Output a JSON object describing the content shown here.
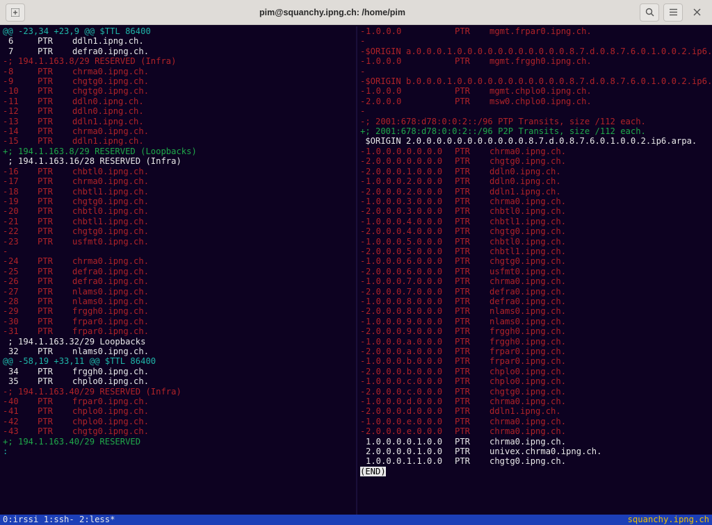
{
  "titlebar": {
    "title": "pim@squanchy.ipng.ch: /home/pim",
    "new_tab_icon": "+",
    "search_icon": "🔍",
    "menu_icon": "≡",
    "close_icon": "×"
  },
  "statusbar": {
    "left": "0:irssi  1:ssh- 2:less*",
    "right": "squanchy.ipng.ch "
  },
  "colors": {
    "bg": "#0d0221",
    "fg": "#e8e8e8",
    "hunk": "#1fb5a8",
    "add": "#1fa84a",
    "del": "#b02328",
    "statusbar_bg": "#1c3fb7",
    "host": "#f0c000"
  },
  "left_pane": [
    {
      "cls": "hunk",
      "c": [
        "@@ -23,34 +23,9 @@ $TTL 86400"
      ]
    },
    {
      "cls": "cmt",
      "c": [
        " ",
        "6",
        "PTR",
        "ddln1.ipng.ch."
      ]
    },
    {
      "cls": "cmt",
      "c": [
        " ",
        "7",
        "PTR",
        "defra0.ipng.ch."
      ]
    },
    {
      "cls": "cmt",
      "c": [
        ""
      ]
    },
    {
      "cls": "delc",
      "c": [
        "-; 194.1.163.8/29 RESERVED (Infra)"
      ]
    },
    {
      "cls": "delc",
      "c": [
        "-",
        "8",
        "PTR",
        "chrma0.ipng.ch."
      ]
    },
    {
      "cls": "delc",
      "c": [
        "-",
        "9",
        "PTR",
        "chgtg0.ipng.ch."
      ]
    },
    {
      "cls": "delc",
      "c": [
        "-",
        "10",
        "PTR",
        "chgtg0.ipng.ch."
      ]
    },
    {
      "cls": "delc",
      "c": [
        "-",
        "11",
        "PTR",
        "ddln0.ipng.ch."
      ]
    },
    {
      "cls": "delc",
      "c": [
        "-",
        "12",
        "PTR",
        "ddln0.ipng.ch."
      ]
    },
    {
      "cls": "delc",
      "c": [
        "-",
        "13",
        "PTR",
        "ddln1.ipng.ch."
      ]
    },
    {
      "cls": "delc",
      "c": [
        "-",
        "14",
        "PTR",
        "chrma0.ipng.ch."
      ]
    },
    {
      "cls": "delc",
      "c": [
        "-",
        "15",
        "PTR",
        "ddln1.ipng.ch."
      ]
    },
    {
      "cls": "addc",
      "c": [
        "+; 194.1.163.8/29 RESERVED (Loopbacks)"
      ]
    },
    {
      "cls": "cmt",
      "c": [
        ""
      ]
    },
    {
      "cls": "cmt",
      "c": [
        " ; 194.1.163.16/28 RESERVED (Infra)"
      ]
    },
    {
      "cls": "delc",
      "c": [
        "-",
        "16",
        "PTR",
        "chbtl0.ipng.ch."
      ]
    },
    {
      "cls": "delc",
      "c": [
        "-",
        "17",
        "PTR",
        "chrma0.ipng.ch."
      ]
    },
    {
      "cls": "delc",
      "c": [
        "-",
        "18",
        "PTR",
        "chbtl1.ipng.ch."
      ]
    },
    {
      "cls": "delc",
      "c": [
        "-",
        "19",
        "PTR",
        "chgtg0.ipng.ch."
      ]
    },
    {
      "cls": "delc",
      "c": [
        "-",
        "20",
        "PTR",
        "chbtl0.ipng.ch."
      ]
    },
    {
      "cls": "delc",
      "c": [
        "-",
        "21",
        "PTR",
        "chbtl1.ipng.ch."
      ]
    },
    {
      "cls": "delc",
      "c": [
        "-",
        "22",
        "PTR",
        "chgtg0.ipng.ch."
      ]
    },
    {
      "cls": "delc",
      "c": [
        "-",
        "23",
        "PTR",
        "usfmt0.ipng.ch."
      ]
    },
    {
      "cls": "delc",
      "c": [
        "-"
      ]
    },
    {
      "cls": "delc",
      "c": [
        "-",
        "24",
        "PTR",
        "chrma0.ipng.ch."
      ]
    },
    {
      "cls": "delc",
      "c": [
        "-",
        "25",
        "PTR",
        "defra0.ipng.ch."
      ]
    },
    {
      "cls": "delc",
      "c": [
        "-",
        "26",
        "PTR",
        "defra0.ipng.ch."
      ]
    },
    {
      "cls": "delc",
      "c": [
        "-",
        "27",
        "PTR",
        "nlams0.ipng.ch."
      ]
    },
    {
      "cls": "delc",
      "c": [
        "-",
        "28",
        "PTR",
        "nlams0.ipng.ch."
      ]
    },
    {
      "cls": "delc",
      "c": [
        "-",
        "29",
        "PTR",
        "frggh0.ipng.ch."
      ]
    },
    {
      "cls": "delc",
      "c": [
        "-",
        "30",
        "PTR",
        "frpar0.ipng.ch."
      ]
    },
    {
      "cls": "delc",
      "c": [
        "-",
        "31",
        "PTR",
        "frpar0.ipng.ch."
      ]
    },
    {
      "cls": "cmt",
      "c": [
        ""
      ]
    },
    {
      "cls": "cmt",
      "c": [
        " ; 194.1.163.32/29 Loopbacks"
      ]
    },
    {
      "cls": "cmt",
      "c": [
        " ",
        "32",
        "PTR",
        "nlams0.ipng.ch."
      ]
    },
    {
      "cls": "hunk",
      "c": [
        "@@ -58,19 +33,11 @@ $TTL 86400"
      ]
    },
    {
      "cls": "cmt",
      "c": [
        " ",
        "34",
        "PTR",
        "frggh0.ipng.ch."
      ]
    },
    {
      "cls": "cmt",
      "c": [
        " ",
        "35",
        "PTR",
        "chplo0.ipng.ch."
      ]
    },
    {
      "cls": "cmt",
      "c": [
        ""
      ]
    },
    {
      "cls": "delc",
      "c": [
        "-; 194.1.163.40/29 RESERVED (Infra)"
      ]
    },
    {
      "cls": "delc",
      "c": [
        "-",
        "40",
        "PTR",
        "frpar0.ipng.ch."
      ]
    },
    {
      "cls": "delc",
      "c": [
        "-",
        "41",
        "PTR",
        "chplo0.ipng.ch."
      ]
    },
    {
      "cls": "delc",
      "c": [
        "-",
        "42",
        "PTR",
        "chplo0.ipng.ch."
      ]
    },
    {
      "cls": "delc",
      "c": [
        "-",
        "43",
        "PTR",
        "chgtg0.ipng.ch."
      ]
    },
    {
      "cls": "addc",
      "c": [
        "+; 194.1.163.40/29 RESERVED"
      ]
    },
    {
      "cls": "hunk",
      "c": [
        ":"
      ]
    }
  ],
  "right_pane": [
    {
      "cls": "delc",
      "c": [
        "-",
        "1.0.0.0",
        "PTR",
        "mgmt.frpar0.ipng.ch."
      ]
    },
    {
      "cls": "delc",
      "c": [
        "-"
      ]
    },
    {
      "cls": "delc",
      "c": [
        "-$ORIGIN a.0.0.0.1.0.0.0.0.0.0.0.0.0.0.0.8.7.d.0.8.7.6.0.1.0.0.2.ip6.arpa."
      ]
    },
    {
      "cls": "delc",
      "c": [
        "-",
        "1.0.0.0",
        "PTR",
        "mgmt.frggh0.ipng.ch."
      ]
    },
    {
      "cls": "delc",
      "c": [
        "-"
      ]
    },
    {
      "cls": "delc",
      "c": [
        "-$ORIGIN b.0.0.0.1.0.0.0.0.0.0.0.0.0.0.0.8.7.d.0.8.7.6.0.1.0.0.2.ip6.arpa."
      ]
    },
    {
      "cls": "delc",
      "c": [
        "-",
        "1.0.0.0",
        "PTR",
        "mgmt.chplo0.ipng.ch."
      ]
    },
    {
      "cls": "delc",
      "c": [
        "-",
        "2.0.0.0",
        "PTR",
        "msw0.chplo0.ipng.ch."
      ]
    },
    {
      "cls": "delc",
      "c": [
        "-"
      ]
    },
    {
      "cls": "delc",
      "c": [
        "-; 2001:678:d78:0:0:2::/96 PTP Transits, size /112 each."
      ]
    },
    {
      "cls": "addc",
      "c": [
        "+; 2001:678:d78:0:0:2::/96 P2P Transits, size /112 each."
      ]
    },
    {
      "cls": "cmt",
      "c": [
        " $ORIGIN 2.0.0.0.0.0.0.0.0.0.0.0.8.7.d.0.8.7.6.0.1.0.0.2.ip6.arpa."
      ]
    },
    {
      "cls": "delc",
      "c": [
        "-",
        "1.0.0.0.0.0.0.0",
        "PTR",
        "chrma0.ipng.ch."
      ]
    },
    {
      "cls": "delc",
      "c": [
        "-",
        "2.0.0.0.0.0.0.0",
        "PTR",
        "chgtg0.ipng.ch."
      ]
    },
    {
      "cls": "delc",
      "c": [
        "-",
        "2.0.0.0.1.0.0.0",
        "PTR",
        "ddln0.ipng.ch."
      ]
    },
    {
      "cls": "delc",
      "c": [
        "-",
        "1.0.0.0.2.0.0.0",
        "PTR",
        "ddln0.ipng.ch."
      ]
    },
    {
      "cls": "delc",
      "c": [
        "-",
        "2.0.0.0.2.0.0.0",
        "PTR",
        "ddln1.ipng.ch."
      ]
    },
    {
      "cls": "delc",
      "c": [
        "-",
        "1.0.0.0.3.0.0.0",
        "PTR",
        "chrma0.ipng.ch."
      ]
    },
    {
      "cls": "delc",
      "c": [
        "-",
        "2.0.0.0.3.0.0.0",
        "PTR",
        "chbtl0.ipng.ch."
      ]
    },
    {
      "cls": "delc",
      "c": [
        "-",
        "1.0.0.0.4.0.0.0",
        "PTR",
        "chbtl1.ipng.ch."
      ]
    },
    {
      "cls": "delc",
      "c": [
        "-",
        "2.0.0.0.4.0.0.0",
        "PTR",
        "chgtg0.ipng.ch."
      ]
    },
    {
      "cls": "delc",
      "c": [
        "-",
        "1.0.0.0.5.0.0.0",
        "PTR",
        "chbtl0.ipng.ch."
      ]
    },
    {
      "cls": "delc",
      "c": [
        "-",
        "2.0.0.0.5.0.0.0",
        "PTR",
        "chbtl1.ipng.ch."
      ]
    },
    {
      "cls": "delc",
      "c": [
        "-",
        "1.0.0.0.6.0.0.0",
        "PTR",
        "chgtg0.ipng.ch."
      ]
    },
    {
      "cls": "delc",
      "c": [
        "-",
        "2.0.0.0.6.0.0.0",
        "PTR",
        "usfmt0.ipng.ch."
      ]
    },
    {
      "cls": "delc",
      "c": [
        "-",
        "1.0.0.0.7.0.0.0",
        "PTR",
        "chrma0.ipng.ch."
      ]
    },
    {
      "cls": "delc",
      "c": [
        "-",
        "2.0.0.0.7.0.0.0",
        "PTR",
        "defra0.ipng.ch."
      ]
    },
    {
      "cls": "delc",
      "c": [
        "-",
        "1.0.0.0.8.0.0.0",
        "PTR",
        "defra0.ipng.ch."
      ]
    },
    {
      "cls": "delc",
      "c": [
        "-",
        "2.0.0.0.8.0.0.0",
        "PTR",
        "nlams0.ipng.ch."
      ]
    },
    {
      "cls": "delc",
      "c": [
        "-",
        "1.0.0.0.9.0.0.0",
        "PTR",
        "nlams0.ipng.ch."
      ]
    },
    {
      "cls": "delc",
      "c": [
        "-",
        "2.0.0.0.9.0.0.0",
        "PTR",
        "frggh0.ipng.ch."
      ]
    },
    {
      "cls": "delc",
      "c": [
        "-",
        "1.0.0.0.a.0.0.0",
        "PTR",
        "frggh0.ipng.ch."
      ]
    },
    {
      "cls": "delc",
      "c": [
        "-",
        "2.0.0.0.a.0.0.0",
        "PTR",
        "frpar0.ipng.ch."
      ]
    },
    {
      "cls": "delc",
      "c": [
        "-",
        "1.0.0.0.b.0.0.0",
        "PTR",
        "frpar0.ipng.ch."
      ]
    },
    {
      "cls": "delc",
      "c": [
        "-",
        "2.0.0.0.b.0.0.0",
        "PTR",
        "chplo0.ipng.ch."
      ]
    },
    {
      "cls": "delc",
      "c": [
        "-",
        "1.0.0.0.c.0.0.0",
        "PTR",
        "chplo0.ipng.ch."
      ]
    },
    {
      "cls": "delc",
      "c": [
        "-",
        "2.0.0.0.c.0.0.0",
        "PTR",
        "chgtg0.ipng.ch."
      ]
    },
    {
      "cls": "delc",
      "c": [
        "-",
        "1.0.0.0.d.0.0.0",
        "PTR",
        "chrma0.ipng.ch."
      ]
    },
    {
      "cls": "delc",
      "c": [
        "-",
        "2.0.0.0.d.0.0.0",
        "PTR",
        "ddln1.ipng.ch."
      ]
    },
    {
      "cls": "delc",
      "c": [
        "-",
        "1.0.0.0.e.0.0.0",
        "PTR",
        "chrma0.ipng.ch."
      ]
    },
    {
      "cls": "delc",
      "c": [
        "-",
        "2.0.0.0.e.0.0.0",
        "PTR",
        "chrma0.ipng.ch."
      ]
    },
    {
      "cls": "cmt",
      "c": [
        " ",
        "1.0.0.0.0.1.0.0",
        "PTR",
        "chrma0.ipng.ch."
      ]
    },
    {
      "cls": "cmt",
      "c": [
        " ",
        "2.0.0.0.0.1.0.0",
        "PTR",
        "univex.chrma0.ipng.ch."
      ]
    },
    {
      "cls": "cmt",
      "c": [
        " ",
        "1.0.0.0.1.1.0.0",
        "PTR",
        "chgtg0.ipng.ch."
      ]
    },
    {
      "cls": "endline",
      "c": [
        "(END)"
      ]
    }
  ],
  "right_cols": {
    "c1_width": 128,
    "c2_width": 50
  }
}
